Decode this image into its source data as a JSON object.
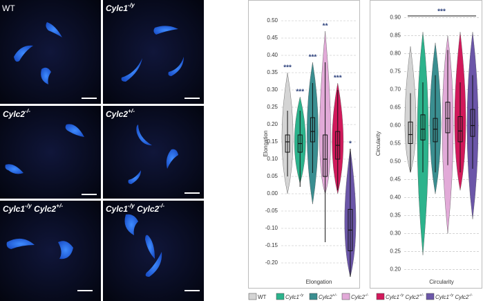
{
  "panels": [
    {
      "label": "WT"
    },
    {
      "label": "Cylc1-/y"
    },
    {
      "label": "Cylc2-/-"
    },
    {
      "label": "Cylc2+/-"
    },
    {
      "label": "Cylc1-/y Cylc2+/-"
    },
    {
      "label": "Cylc1-/y Cylc2-/-"
    }
  ],
  "chart_data": [
    {
      "type": "violin",
      "x_label": "Elongation",
      "y_label": "Elongation",
      "ylim": [
        -0.24,
        0.53
      ],
      "yticks": [
        {
          "value": -0.2,
          "label": "-0.20"
        },
        {
          "value": -0.15,
          "label": "-0.15"
        },
        {
          "value": -0.1,
          "label": "-0.10"
        },
        {
          "value": -0.05,
          "label": "-0.05"
        },
        {
          "value": 0,
          "label": "0.00"
        },
        {
          "value": 0.05,
          "label": "0.05"
        },
        {
          "value": 0.1,
          "label": "0.10"
        },
        {
          "value": 0.15,
          "label": "0.15"
        },
        {
          "value": 0.2,
          "label": "0.20"
        },
        {
          "value": 0.25,
          "label": "0.25"
        },
        {
          "value": 0.3,
          "label": "0.30"
        },
        {
          "value": 0.35,
          "label": "0.35"
        },
        {
          "value": 0.4,
          "label": "0.40"
        },
        {
          "value": 0.45,
          "label": "0.45"
        },
        {
          "value": 0.5,
          "label": "0.50"
        }
      ],
      "grid": true,
      "series": [
        {
          "name": "WT",
          "color": "#d4d4d4",
          "min": 0.0,
          "max": 0.35,
          "whisker_low": 0.05,
          "q1": 0.12,
          "median": 0.15,
          "q3": 0.17,
          "whisker_high": 0.24,
          "annotation": "***"
        },
        {
          "name": "Cylc1-/y",
          "color": "#2cb38c",
          "min": 0.03,
          "max": 0.28,
          "whisker_low": 0.02,
          "q1": 0.12,
          "median": 0.145,
          "q3": 0.17,
          "whisker_high": 0.24,
          "annotation": "***"
        },
        {
          "name": "Cylc2+/-",
          "color": "#3a8e90",
          "min": -0.03,
          "max": 0.38,
          "whisker_low": 0.06,
          "q1": 0.15,
          "median": 0.18,
          "q3": 0.22,
          "whisker_high": 0.32,
          "annotation": "***"
        },
        {
          "name": "Cylc2-/-",
          "color": "#e2aad8",
          "min": 0.0,
          "max": 0.47,
          "whisker_low": -0.14,
          "q1": 0.05,
          "median": 0.1,
          "q3": 0.17,
          "whisker_high": 0.38,
          "annotation": "**"
        },
        {
          "name": "Cylc1-/y Cylc2+/-",
          "color": "#d1195b",
          "min": 0.0,
          "max": 0.32,
          "whisker_low": 0.01,
          "q1": 0.1,
          "median": 0.14,
          "q3": 0.18,
          "whisker_high": 0.3,
          "annotation": "***"
        },
        {
          "name": "Cylc1-/y Cylc2-/-",
          "color": "#6b56a8",
          "min": -0.24,
          "max": 0.13,
          "whisker_low": -0.24,
          "q1": -0.165,
          "median": -0.105,
          "q3": -0.045,
          "whisker_high": 0.13,
          "annotation": "*"
        }
      ]
    },
    {
      "type": "violin",
      "x_label": "Circularity",
      "y_label": "Circularity",
      "ylim": [
        0.18,
        0.92
      ],
      "yticks": [
        {
          "value": 0.2,
          "label": "0.20"
        },
        {
          "value": 0.25,
          "label": "0.25"
        },
        {
          "value": 0.3,
          "label": "0.30"
        },
        {
          "value": 0.35,
          "label": "0.35"
        },
        {
          "value": 0.4,
          "label": "0.40"
        },
        {
          "value": 0.45,
          "label": "0.45"
        },
        {
          "value": 0.5,
          "label": "0.50"
        },
        {
          "value": 0.55,
          "label": "0.55"
        },
        {
          "value": 0.6,
          "label": "0.60"
        },
        {
          "value": 0.65,
          "label": "0.65"
        },
        {
          "value": 0.7,
          "label": "0.70"
        },
        {
          "value": 0.75,
          "label": "0.75"
        },
        {
          "value": 0.8,
          "label": "0.80"
        },
        {
          "value": 0.85,
          "label": "0.85"
        },
        {
          "value": 0.9,
          "label": "0.90"
        }
      ],
      "grid": true,
      "annotation": "***",
      "series": [
        {
          "color": "#d4d4d4",
          "min": 0.47,
          "max": 0.82,
          "whisker_low": 0.47,
          "q1": 0.55,
          "median": 0.575,
          "q3": 0.61,
          "whisker_high": 0.69
        },
        {
          "color": "#2cb38c",
          "min": 0.24,
          "max": 0.86,
          "whisker_low": 0.47,
          "q1": 0.56,
          "median": 0.59,
          "q3": 0.63,
          "whisker_high": 0.72
        },
        {
          "color": "#3a8e90",
          "min": 0.41,
          "max": 0.83,
          "whisker_low": 0.47,
          "q1": 0.555,
          "median": 0.59,
          "q3": 0.62,
          "whisker_high": 0.74
        },
        {
          "color": "#e2aad8",
          "min": 0.3,
          "max": 0.85,
          "whisker_low": 0.49,
          "q1": 0.58,
          "median": 0.62,
          "q3": 0.665,
          "whisker_high": 0.81
        },
        {
          "color": "#d1195b",
          "min": 0.42,
          "max": 0.86,
          "whisker_low": 0.47,
          "q1": 0.555,
          "median": 0.585,
          "q3": 0.625,
          "whisker_high": 0.72
        },
        {
          "color": "#6b56a8",
          "min": 0.34,
          "max": 0.86,
          "whisker_low": 0.48,
          "q1": 0.57,
          "median": 0.6,
          "q3": 0.645,
          "whisker_high": 0.74
        }
      ]
    }
  ]
}
